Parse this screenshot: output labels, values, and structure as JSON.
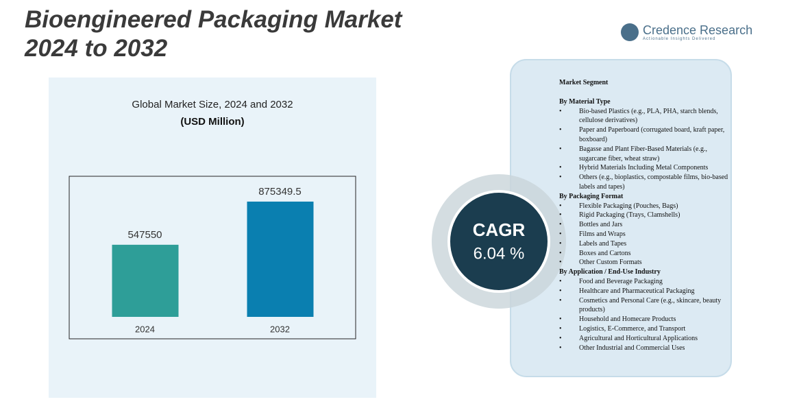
{
  "header": {
    "title": [
      "Bioengineered Packaging Market",
      "2024 to 2032"
    ]
  },
  "logo": {
    "name": "Credence Research",
    "tagline": "Actionable Insights Delivered"
  },
  "chart_data": {
    "type": "bar",
    "title": "Global Market Size, 2024 and 2032",
    "subtitle": "(USD Million)",
    "categories": [
      "2024",
      "2032"
    ],
    "values": [
      547550,
      875349.5
    ],
    "colors": [
      "#2e9e98",
      "#0a7fb0"
    ],
    "ylim": [
      0,
      1000000
    ]
  },
  "cagr": {
    "label": "CAGR",
    "value": "6.04 %"
  },
  "segments": {
    "title": "Market Segment",
    "groups": [
      {
        "heading": "By Material Type",
        "items": [
          "Bio-based Plastics (e.g., PLA, PHA, starch blends, cellulose derivatives)",
          "Paper and Paperboard (corrugated board, kraft paper, boxboard)",
          "Bagasse and Plant Fiber-Based Materials (e.g., sugarcane fiber, wheat straw)",
          "Hybrid Materials Including Metal Components",
          "Others (e.g., bioplastics, compostable films, bio-based labels and tapes)"
        ]
      },
      {
        "heading": "By Packaging Format",
        "items": [
          "Flexible Packaging (Pouches, Bags)",
          "Rigid Packaging (Trays, Clamshells)",
          "Bottles and Jars",
          "Films and Wraps",
          "Labels and Tapes",
          "Boxes and Cartons",
          "Other Custom Formats"
        ]
      },
      {
        "heading": "By Application / End-Use Industry",
        "items": [
          "Food and Beverage Packaging",
          "Healthcare and Pharmaceutical Packaging",
          "Cosmetics and Personal Care (e.g., skincare, beauty products)",
          "Household and Homecare Products",
          "Logistics, E-Commerce, and Transport",
          "Agricultural and Horticultural Applications",
          "Other Industrial and Commercial Uses"
        ]
      }
    ]
  }
}
